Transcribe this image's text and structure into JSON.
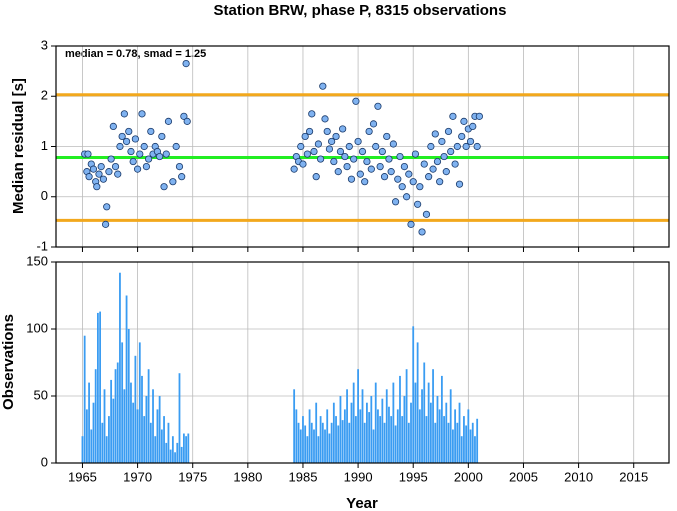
{
  "chart_data": [
    {
      "type": "scatter",
      "title": "Station BRW, phase P, 8315 observations",
      "ylabel": "Median residual [s]",
      "annotation": "median = 0.78, smad = 1.25",
      "color": "#7fb2f0",
      "xlim": [
        1962.6,
        2018.2
      ],
      "xticks": [
        1965,
        1970,
        1975,
        1980,
        1985,
        1990,
        1995,
        2000,
        2005,
        2010,
        2015
      ],
      "ylim": [
        -1,
        3
      ],
      "yticks": [
        -1,
        0,
        1,
        2,
        3
      ],
      "grid": true,
      "hlines": [
        {
          "value": 0.78,
          "color": "#22ee22"
        },
        {
          "value": 2.03,
          "color": "#f2a81d"
        },
        {
          "value": -0.47,
          "color": "#f2a81d"
        }
      ],
      "x": [
        1965.2,
        1965.4,
        1965.5,
        1965.6,
        1965.8,
        1966.0,
        1966.2,
        1966.3,
        1966.5,
        1966.7,
        1966.9,
        1967.1,
        1967.2,
        1967.4,
        1967.6,
        1967.8,
        1968.0,
        1968.2,
        1968.4,
        1968.6,
        1968.8,
        1969.0,
        1969.2,
        1969.4,
        1969.6,
        1969.8,
        1970.0,
        1970.2,
        1970.4,
        1970.6,
        1970.8,
        1971.0,
        1971.2,
        1971.4,
        1971.6,
        1971.8,
        1972.0,
        1972.2,
        1972.4,
        1972.6,
        1972.8,
        1973.2,
        1973.5,
        1973.8,
        1974.0,
        1974.2,
        1974.4,
        1974.5,
        1984.2,
        1984.4,
        1984.6,
        1984.8,
        1985.0,
        1985.2,
        1985.4,
        1985.6,
        1985.8,
        1986.0,
        1986.2,
        1986.4,
        1986.6,
        1986.8,
        1987.0,
        1987.2,
        1987.4,
        1987.6,
        1987.8,
        1988.0,
        1988.2,
        1988.4,
        1988.6,
        1988.8,
        1989.0,
        1989.2,
        1989.4,
        1989.6,
        1989.8,
        1990.0,
        1990.2,
        1990.4,
        1990.6,
        1990.8,
        1991.0,
        1991.2,
        1991.4,
        1991.6,
        1991.8,
        1992.0,
        1992.2,
        1992.4,
        1992.6,
        1992.8,
        1993.0,
        1993.2,
        1993.4,
        1993.6,
        1993.8,
        1994.0,
        1994.2,
        1994.4,
        1994.6,
        1994.8,
        1995.0,
        1995.2,
        1995.4,
        1995.6,
        1995.8,
        1996.0,
        1996.2,
        1996.4,
        1996.6,
        1996.8,
        1997.0,
        1997.2,
        1997.4,
        1997.6,
        1997.8,
        1998.0,
        1998.2,
        1998.4,
        1998.6,
        1998.8,
        1999.0,
        1999.2,
        1999.4,
        1999.6,
        1999.8,
        2000.0,
        2000.2,
        2000.4,
        2000.6,
        2000.8,
        2001.0
      ],
      "values": [
        0.85,
        0.5,
        0.85,
        0.4,
        0.65,
        0.55,
        0.3,
        0.2,
        0.45,
        0.6,
        0.35,
        -0.55,
        -0.2,
        0.5,
        0.75,
        1.4,
        0.6,
        0.45,
        1.0,
        1.2,
        1.65,
        1.1,
        1.3,
        0.9,
        0.7,
        1.15,
        0.55,
        0.85,
        1.65,
        1.0,
        0.6,
        0.75,
        1.3,
        0.85,
        1.0,
        0.9,
        0.8,
        1.2,
        0.2,
        0.85,
        1.5,
        0.3,
        1.0,
        0.6,
        0.4,
        1.6,
        2.65,
        1.5,
        0.55,
        0.8,
        0.7,
        1.0,
        0.65,
        1.2,
        0.85,
        1.3,
        1.65,
        0.9,
        0.4,
        1.05,
        0.75,
        2.2,
        1.55,
        1.3,
        0.95,
        1.1,
        0.7,
        1.2,
        0.5,
        0.9,
        1.35,
        0.8,
        0.6,
        1.0,
        0.35,
        0.75,
        1.9,
        1.1,
        0.45,
        0.9,
        0.3,
        0.7,
        1.3,
        0.55,
        1.45,
        1.0,
        1.8,
        0.6,
        0.9,
        0.4,
        1.2,
        0.75,
        0.5,
        1.05,
        -0.1,
        0.35,
        0.8,
        0.2,
        0.6,
        0.0,
        0.45,
        -0.55,
        0.3,
        0.85,
        -0.15,
        0.2,
        -0.7,
        0.65,
        -0.35,
        0.4,
        1.0,
        0.55,
        1.25,
        0.7,
        0.3,
        1.1,
        0.8,
        0.5,
        1.3,
        0.9,
        1.6,
        0.65,
        1.0,
        0.25,
        1.2,
        1.5,
        1.0,
        1.35,
        1.1,
        1.4,
        1.6,
        1.0,
        1.6
      ]
    },
    {
      "type": "bar",
      "xlabel": "Year",
      "ylabel": "Observations",
      "color": "#3a9cf2",
      "xlim": [
        1962.6,
        2018.2
      ],
      "xticks": [
        1965,
        1970,
        1975,
        1980,
        1985,
        1990,
        1995,
        2000,
        2005,
        2010,
        2015
      ],
      "ylim": [
        0,
        150
      ],
      "yticks": [
        0,
        50,
        100,
        150
      ],
      "grid": true,
      "x": [
        1965.0,
        1965.2,
        1965.4,
        1965.6,
        1965.8,
        1966.0,
        1966.2,
        1966.4,
        1966.6,
        1966.8,
        1967.0,
        1967.2,
        1967.4,
        1967.6,
        1967.8,
        1968.0,
        1968.2,
        1968.4,
        1968.6,
        1968.8,
        1969.0,
        1969.2,
        1969.4,
        1969.6,
        1969.8,
        1970.0,
        1970.2,
        1970.4,
        1970.6,
        1970.8,
        1971.0,
        1971.2,
        1971.4,
        1971.6,
        1971.8,
        1972.0,
        1972.2,
        1972.4,
        1972.6,
        1972.8,
        1973.0,
        1973.2,
        1973.4,
        1973.6,
        1973.8,
        1974.0,
        1974.2,
        1974.4,
        1974.6,
        1984.2,
        1984.4,
        1984.6,
        1984.8,
        1985.0,
        1985.2,
        1985.4,
        1985.6,
        1985.8,
        1986.0,
        1986.2,
        1986.4,
        1986.6,
        1986.8,
        1987.0,
        1987.2,
        1987.4,
        1987.6,
        1987.8,
        1988.0,
        1988.2,
        1988.4,
        1988.6,
        1988.8,
        1989.0,
        1989.2,
        1989.4,
        1989.6,
        1989.8,
        1990.0,
        1990.2,
        1990.4,
        1990.6,
        1990.8,
        1991.0,
        1991.2,
        1991.4,
        1991.6,
        1991.8,
        1992.0,
        1992.2,
        1992.4,
        1992.6,
        1992.8,
        1993.0,
        1993.2,
        1993.4,
        1993.6,
        1993.8,
        1994.0,
        1994.2,
        1994.4,
        1994.6,
        1994.8,
        1995.0,
        1995.2,
        1995.4,
        1995.6,
        1995.8,
        1996.0,
        1996.2,
        1996.4,
        1996.6,
        1996.8,
        1997.0,
        1997.2,
        1997.4,
        1997.6,
        1997.8,
        1998.0,
        1998.2,
        1998.4,
        1998.6,
        1998.8,
        1999.0,
        1999.2,
        1999.4,
        1999.6,
        1999.8,
        2000.0,
        2000.2,
        2000.4,
        2000.6,
        2000.8
      ],
      "values": [
        20,
        95,
        40,
        60,
        25,
        45,
        70,
        112,
        113,
        30,
        55,
        20,
        35,
        62,
        48,
        70,
        75,
        142,
        90,
        55,
        125,
        100,
        60,
        45,
        80,
        40,
        90,
        65,
        35,
        50,
        70,
        30,
        55,
        20,
        40,
        50,
        25,
        35,
        15,
        30,
        10,
        20,
        8,
        15,
        67,
        12,
        22,
        20,
        22,
        55,
        40,
        30,
        25,
        35,
        28,
        20,
        40,
        30,
        25,
        45,
        20,
        35,
        30,
        25,
        40,
        22,
        30,
        45,
        35,
        28,
        50,
        32,
        40,
        55,
        30,
        45,
        60,
        35,
        70,
        40,
        55,
        30,
        45,
        38,
        50,
        25,
        60,
        40,
        35,
        48,
        30,
        55,
        42,
        35,
        60,
        28,
        40,
        65,
        35,
        50,
        70,
        30,
        45,
        102,
        60,
        90,
        40,
        55,
        75,
        35,
        60,
        45,
        70,
        30,
        50,
        40,
        65,
        35,
        45,
        30,
        55,
        25,
        40,
        30,
        45,
        20,
        35,
        28,
        40,
        25,
        30,
        20,
        33
      ]
    }
  ]
}
